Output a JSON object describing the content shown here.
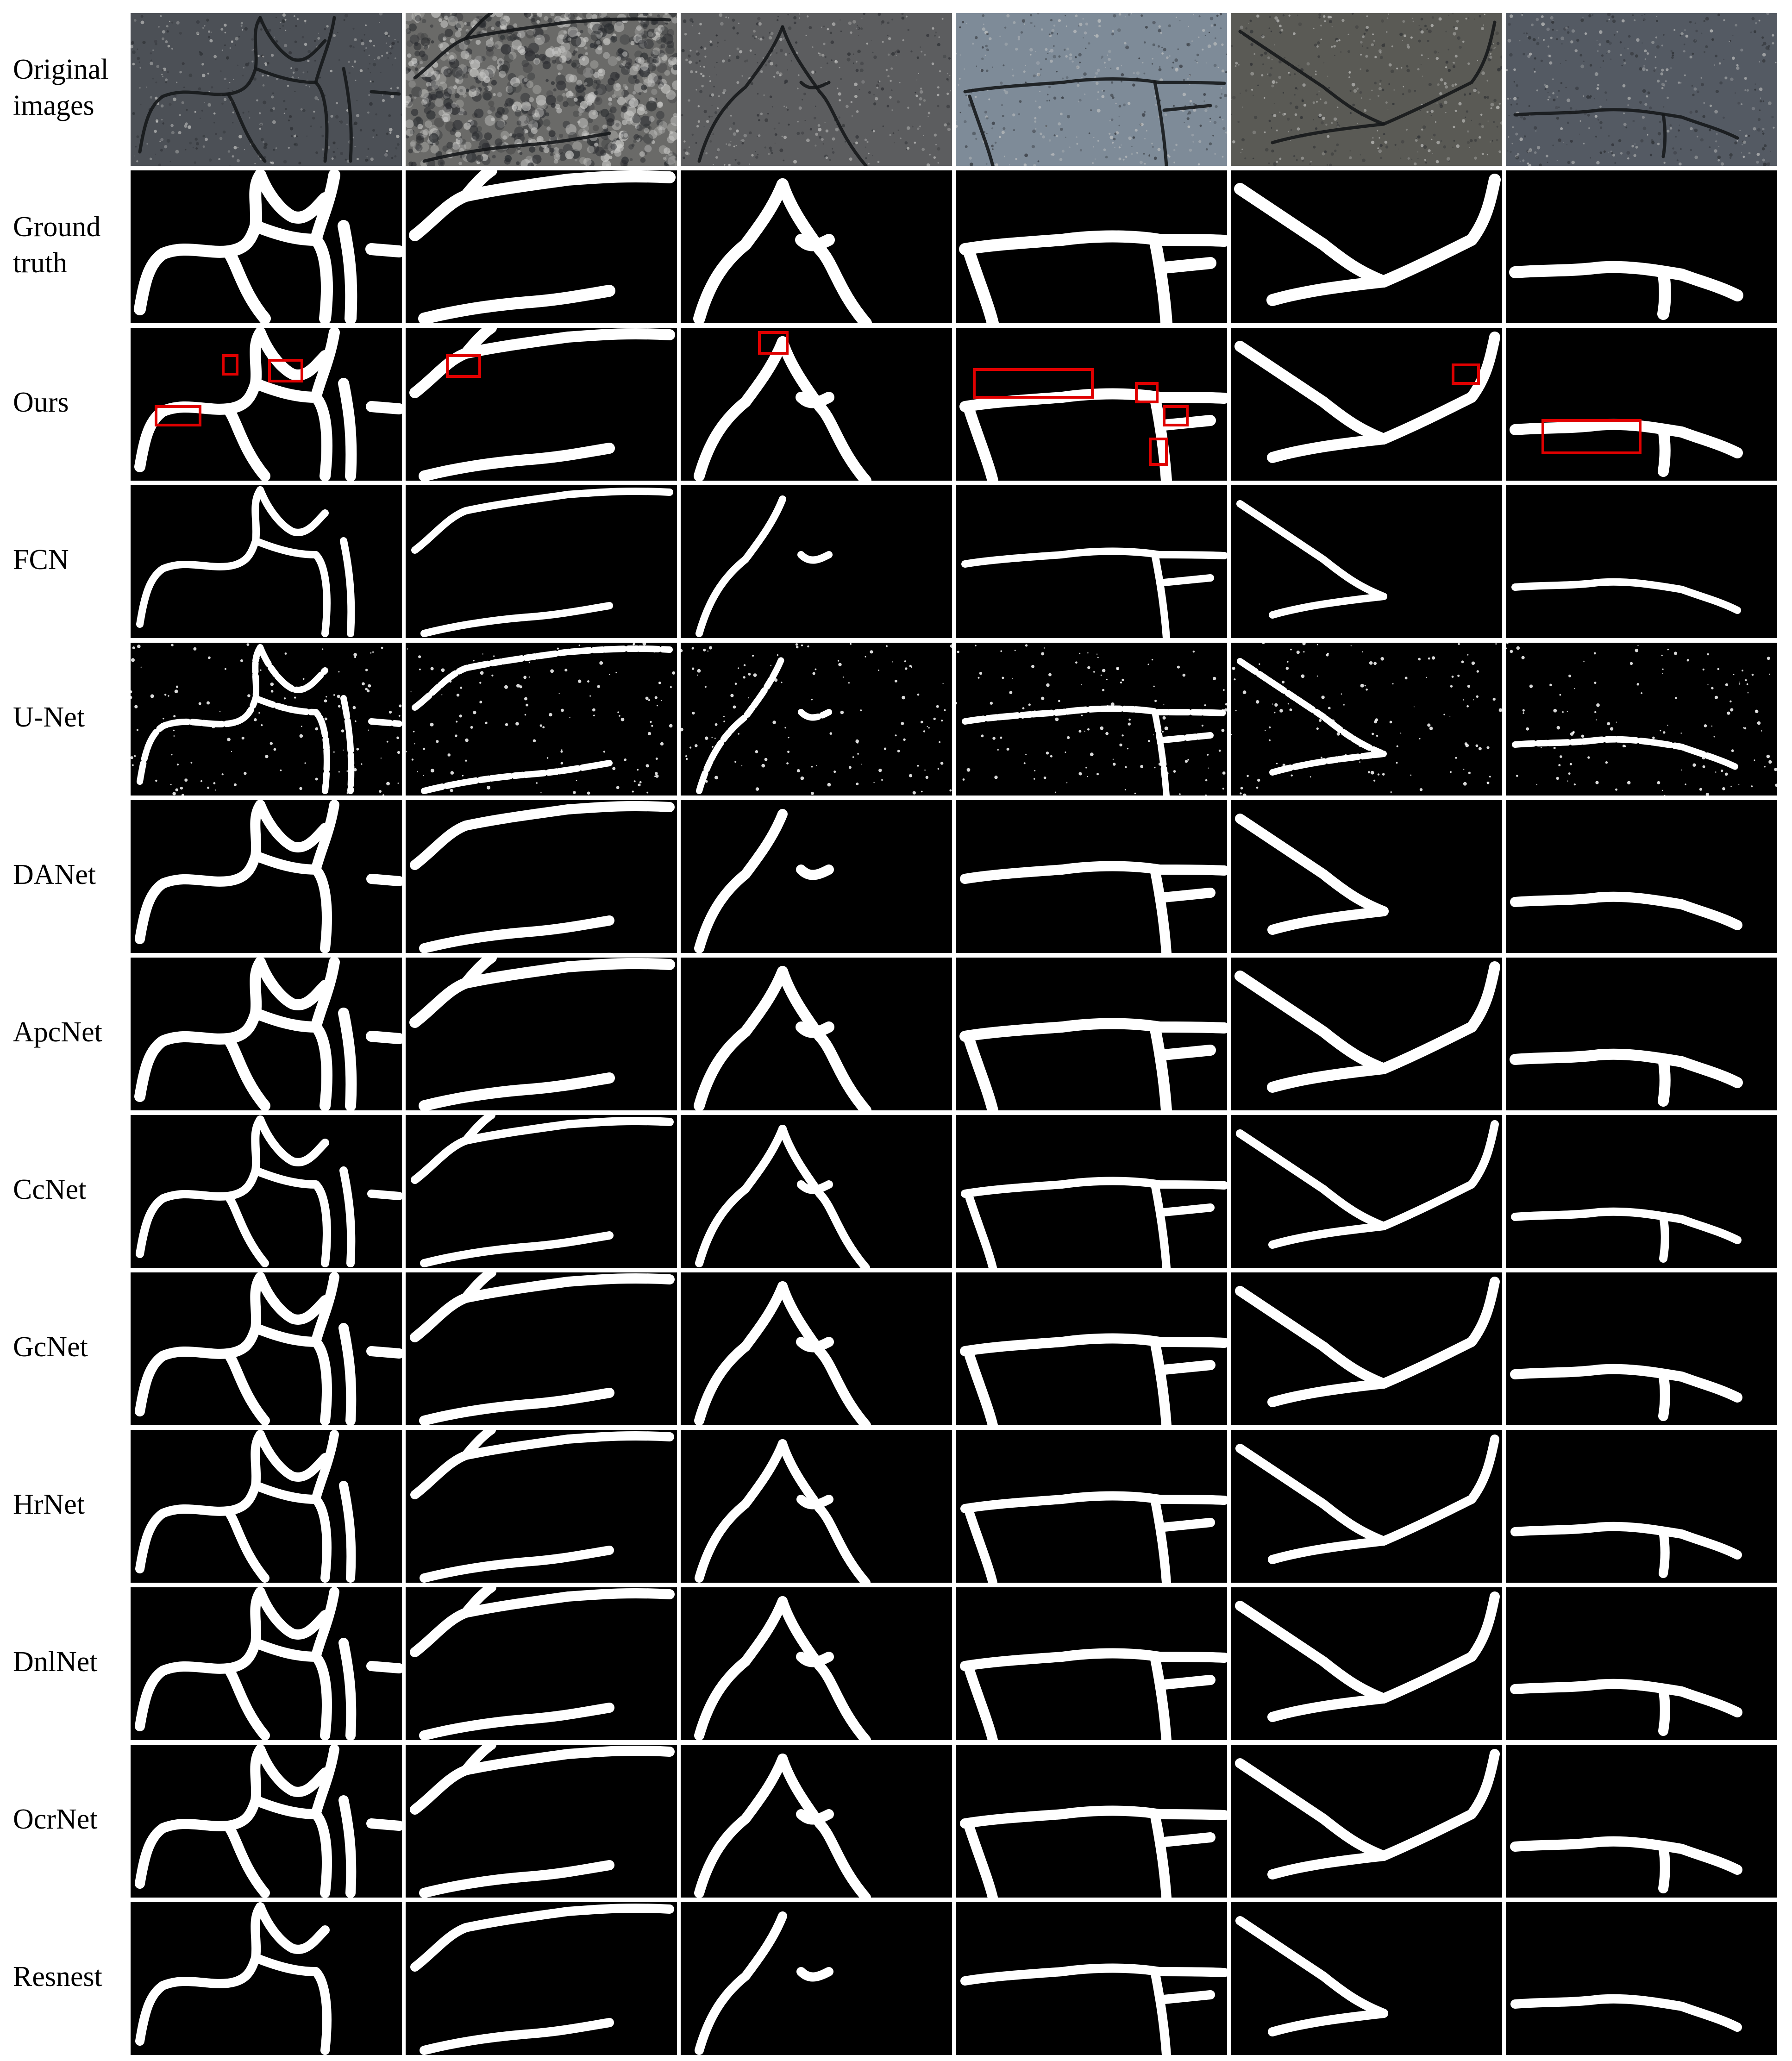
{
  "rows": [
    {
      "label": "Original\nimages",
      "kind": "photo"
    },
    {
      "label": "Ground\ntruth",
      "kind": "mask"
    },
    {
      "label": "Ours",
      "kind": "mask",
      "highlights": true
    },
    {
      "label": "FCN",
      "kind": "mask"
    },
    {
      "label": "U-Net",
      "kind": "mask",
      "noisy": true
    },
    {
      "label": "DANet",
      "kind": "mask"
    },
    {
      "label": "ApcNet",
      "kind": "mask"
    },
    {
      "label": "CcNet",
      "kind": "mask"
    },
    {
      "label": "GcNet",
      "kind": "mask"
    },
    {
      "label": "HrNet",
      "kind": "mask"
    },
    {
      "label": "DnlNet",
      "kind": "mask"
    },
    {
      "label": "OcrNet",
      "kind": "mask"
    },
    {
      "label": "Resnest",
      "kind": "mask"
    }
  ],
  "columns": 6,
  "colors": {
    "background": "#ffffff",
    "mask_background": "#000000",
    "crack": "#ffffff",
    "highlight_box": "#e00000",
    "photo_tones": [
      "#4c5056",
      "#6a6a68",
      "#5c5d5f",
      "#7e8b98",
      "#5a5a55",
      "#545a63"
    ]
  }
}
